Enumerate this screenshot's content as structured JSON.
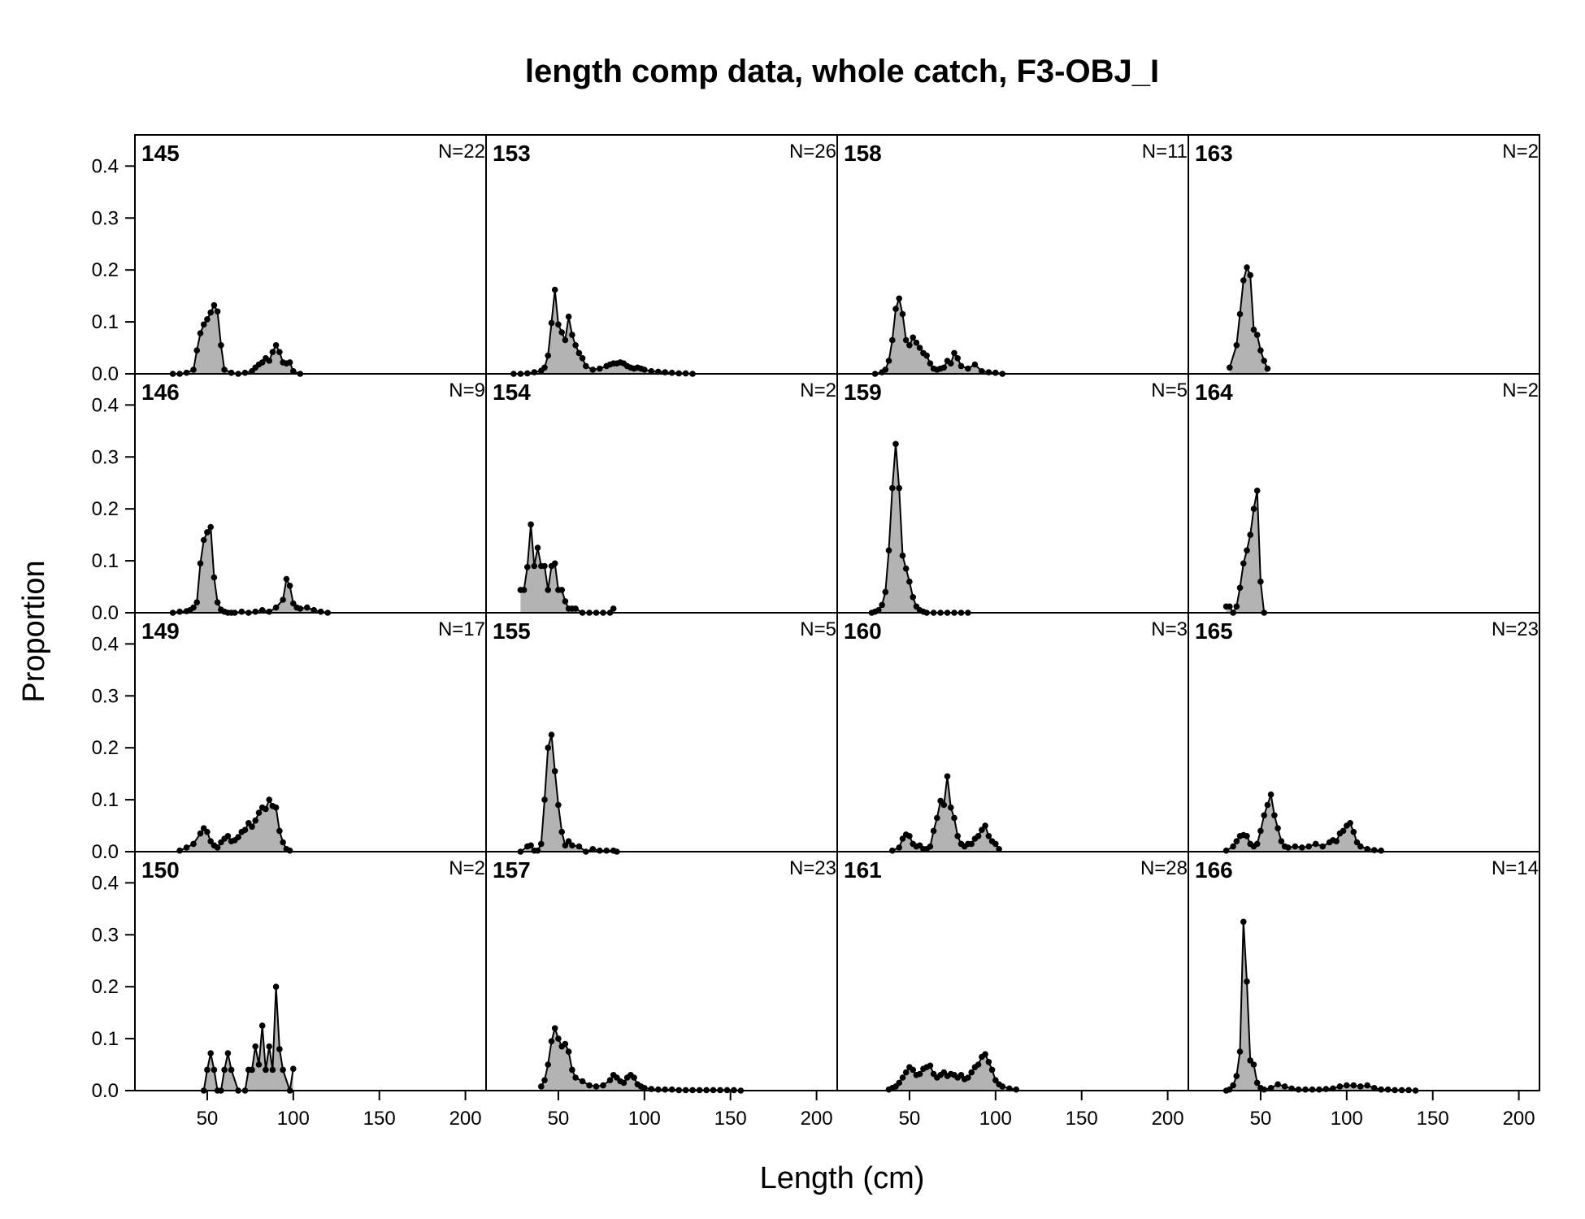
{
  "chart_data": {
    "type": "area",
    "title": "length comp data, whole catch, F3-OBJ_I",
    "xlabel": "Length (cm)",
    "ylabel": "Proportion",
    "xlim": [
      8,
      212
    ],
    "ylim": [
      0,
      0.46
    ],
    "xticks": [
      50,
      100,
      150,
      200
    ],
    "yticks": [
      0.0,
      0.1,
      0.2,
      0.3,
      0.4
    ],
    "ytick_labels": [
      "0.0",
      "0.1",
      "0.2",
      "0.3",
      "0.4"
    ],
    "grid": false,
    "layout": {
      "columns": 4,
      "rows": 4
    },
    "panels": [
      {
        "year": "145",
        "n_label": "N=22",
        "x": [
          30,
          34,
          38,
          42,
          44,
          46,
          48,
          50,
          52,
          54,
          56,
          58,
          60,
          64,
          68,
          72,
          76,
          78,
          80,
          82,
          84,
          86,
          88,
          90,
          92,
          94,
          96,
          98,
          100,
          104
        ],
        "y": [
          0,
          0,
          0.002,
          0.008,
          0.045,
          0.078,
          0.095,
          0.105,
          0.118,
          0.132,
          0.12,
          0.055,
          0.008,
          0.002,
          0,
          0.002,
          0.005,
          0.012,
          0.018,
          0.022,
          0.03,
          0.025,
          0.042,
          0.055,
          0.042,
          0.022,
          0.02,
          0.022,
          0.005,
          0
        ]
      },
      {
        "year": "146",
        "n_label": "N=9",
        "x": [
          30,
          34,
          38,
          40,
          42,
          44,
          46,
          48,
          50,
          52,
          54,
          56,
          58,
          60,
          62,
          64,
          66,
          70,
          74,
          78,
          82,
          86,
          90,
          94,
          96,
          98,
          100,
          102,
          104,
          108,
          112,
          116,
          120
        ],
        "y": [
          0,
          0.002,
          0.003,
          0.005,
          0.01,
          0.02,
          0.095,
          0.14,
          0.155,
          0.165,
          0.068,
          0.02,
          0.006,
          0.002,
          0,
          0,
          0,
          0.002,
          0,
          0.002,
          0.005,
          0.002,
          0.01,
          0.025,
          0.065,
          0.052,
          0.018,
          0.01,
          0.008,
          0.01,
          0.005,
          0.002,
          0
        ]
      },
      {
        "year": "149",
        "n_label": "N=17",
        "x": [
          34,
          38,
          42,
          46,
          48,
          50,
          52,
          54,
          56,
          58,
          60,
          62,
          64,
          66,
          68,
          70,
          72,
          74,
          76,
          78,
          80,
          82,
          84,
          86,
          88,
          90,
          92,
          94,
          96,
          98
        ],
        "y": [
          0.002,
          0.008,
          0.015,
          0.035,
          0.045,
          0.038,
          0.02,
          0.012,
          0.008,
          0.018,
          0.025,
          0.03,
          0.02,
          0.022,
          0.028,
          0.038,
          0.042,
          0.055,
          0.048,
          0.06,
          0.075,
          0.085,
          0.082,
          0.1,
          0.088,
          0.085,
          0.04,
          0.018,
          0.005,
          0.002
        ]
      },
      {
        "year": "150",
        "n_label": "N=2",
        "x": [
          48,
          50,
          52,
          54,
          56,
          58,
          60,
          62,
          64,
          68,
          72,
          74,
          76,
          78,
          80,
          82,
          84,
          86,
          88,
          90,
          92,
          94,
          98,
          100
        ],
        "y": [
          0,
          0.04,
          0.072,
          0.04,
          0,
          0,
          0.04,
          0.072,
          0.04,
          0,
          0,
          0.04,
          0.04,
          0.085,
          0.05,
          0.125,
          0.04,
          0.085,
          0.04,
          0.2,
          0.08,
          0.04,
          0,
          0.042
        ]
      },
      {
        "year": "153",
        "n_label": "N=26",
        "x": [
          24,
          28,
          32,
          36,
          40,
          42,
          44,
          46,
          48,
          50,
          52,
          54,
          56,
          58,
          60,
          62,
          64,
          66,
          70,
          74,
          78,
          80,
          82,
          84,
          86,
          88,
          90,
          92,
          94,
          96,
          98,
          100,
          104,
          108,
          112,
          116,
          120,
          124,
          128
        ],
        "y": [
          0,
          0,
          0.001,
          0.003,
          0.006,
          0.012,
          0.035,
          0.098,
          0.162,
          0.095,
          0.08,
          0.065,
          0.11,
          0.075,
          0.055,
          0.04,
          0.03,
          0.015,
          0.008,
          0.01,
          0.015,
          0.018,
          0.02,
          0.02,
          0.022,
          0.02,
          0.015,
          0.012,
          0.01,
          0.012,
          0.01,
          0.008,
          0.005,
          0.004,
          0.003,
          0.002,
          0.001,
          0.001,
          0
        ]
      },
      {
        "year": "154",
        "n_label": "N=2",
        "x": [
          28,
          30,
          32,
          34,
          36,
          38,
          40,
          42,
          44,
          46,
          48,
          50,
          52,
          54,
          56,
          58,
          60,
          64,
          68,
          72,
          76,
          80,
          82
        ],
        "y": [
          0.044,
          0.044,
          0.088,
          0.17,
          0.09,
          0.125,
          0.09,
          0.09,
          0.044,
          0.09,
          0.095,
          0.044,
          0.044,
          0.022,
          0.008,
          0.008,
          0.008,
          0,
          0,
          0,
          0,
          0,
          0.008
        ]
      },
      {
        "year": "155",
        "n_label": "N=5",
        "x": [
          28,
          32,
          34,
          36,
          38,
          40,
          42,
          44,
          46,
          48,
          50,
          52,
          54,
          56,
          58,
          62,
          66,
          70,
          74,
          78,
          82,
          84
        ],
        "y": [
          0,
          0.01,
          0.012,
          0.002,
          0.002,
          0.015,
          0.1,
          0.2,
          0.225,
          0.155,
          0.09,
          0.038,
          0.012,
          0.02,
          0.012,
          0.01,
          0,
          0.005,
          0.002,
          0.002,
          0.002,
          0
        ]
      },
      {
        "year": "157",
        "n_label": "N=23",
        "x": [
          40,
          42,
          44,
          46,
          48,
          50,
          52,
          54,
          56,
          58,
          60,
          64,
          68,
          72,
          76,
          80,
          82,
          84,
          86,
          88,
          90,
          92,
          94,
          96,
          98,
          100,
          104,
          108,
          112,
          116,
          120,
          124,
          128,
          132,
          136,
          140,
          144,
          148,
          152,
          156
        ],
        "y": [
          0.008,
          0.02,
          0.05,
          0.095,
          0.12,
          0.1,
          0.085,
          0.09,
          0.075,
          0.04,
          0.025,
          0.018,
          0.01,
          0.008,
          0.01,
          0.02,
          0.03,
          0.025,
          0.018,
          0.015,
          0.025,
          0.03,
          0.025,
          0.012,
          0.008,
          0.005,
          0.003,
          0.002,
          0.002,
          0.002,
          0.001,
          0.001,
          0.001,
          0.001,
          0.001,
          0.001,
          0.001,
          0.001,
          0.001,
          0
        ]
      },
      {
        "year": "158",
        "n_label": "N=11",
        "x": [
          30,
          34,
          36,
          38,
          40,
          42,
          44,
          46,
          48,
          50,
          52,
          54,
          56,
          58,
          60,
          62,
          64,
          66,
          68,
          70,
          72,
          74,
          76,
          78,
          80,
          84,
          88,
          92,
          96,
          100,
          104
        ],
        "y": [
          0,
          0.003,
          0.008,
          0.025,
          0.065,
          0.125,
          0.145,
          0.115,
          0.065,
          0.055,
          0.07,
          0.06,
          0.05,
          0.04,
          0.035,
          0.02,
          0.01,
          0.008,
          0.01,
          0.012,
          0.025,
          0.02,
          0.04,
          0.03,
          0.015,
          0.01,
          0.018,
          0.005,
          0.003,
          0.002,
          0
        ]
      },
      {
        "year": "159",
        "n_label": "N=5",
        "x": [
          28,
          30,
          32,
          34,
          36,
          38,
          40,
          42,
          44,
          46,
          48,
          50,
          52,
          54,
          56,
          58,
          60,
          64,
          68,
          72,
          76,
          80,
          84
        ],
        "y": [
          0,
          0.002,
          0.005,
          0.015,
          0.04,
          0.12,
          0.24,
          0.325,
          0.24,
          0.11,
          0.085,
          0.06,
          0.03,
          0.012,
          0.005,
          0.002,
          0,
          0,
          0,
          0,
          0,
          0,
          0
        ]
      },
      {
        "year": "160",
        "n_label": "N=3",
        "x": [
          40,
          44,
          46,
          48,
          50,
          52,
          54,
          56,
          58,
          60,
          62,
          64,
          66,
          68,
          70,
          72,
          74,
          76,
          78,
          80,
          82,
          84,
          86,
          88,
          90,
          92,
          94,
          96,
          98,
          100,
          102
        ],
        "y": [
          0.002,
          0.008,
          0.025,
          0.033,
          0.03,
          0.015,
          0.01,
          0.012,
          0.005,
          0.005,
          0.01,
          0.04,
          0.065,
          0.098,
          0.09,
          0.145,
          0.085,
          0.065,
          0.03,
          0.015,
          0.01,
          0.015,
          0.015,
          0.025,
          0.03,
          0.042,
          0.05,
          0.03,
          0.02,
          0.015,
          0.005
        ]
      },
      {
        "year": "161",
        "n_label": "N=28",
        "x": [
          38,
          40,
          42,
          44,
          46,
          48,
          50,
          52,
          54,
          56,
          58,
          60,
          62,
          64,
          66,
          68,
          70,
          72,
          74,
          76,
          78,
          80,
          82,
          84,
          86,
          88,
          90,
          92,
          94,
          96,
          98,
          100,
          102,
          104,
          108,
          112
        ],
        "y": [
          0.002,
          0.005,
          0.008,
          0.015,
          0.025,
          0.035,
          0.045,
          0.04,
          0.03,
          0.032,
          0.042,
          0.045,
          0.048,
          0.032,
          0.025,
          0.03,
          0.035,
          0.028,
          0.032,
          0.03,
          0.025,
          0.03,
          0.022,
          0.025,
          0.035,
          0.045,
          0.05,
          0.065,
          0.07,
          0.055,
          0.04,
          0.02,
          0.012,
          0.008,
          0.004,
          0.002
        ]
      },
      {
        "year": "163",
        "n_label": "N=2",
        "x": [
          32,
          36,
          38,
          40,
          42,
          44,
          46,
          48,
          50,
          52,
          54
        ],
        "y": [
          0.012,
          0.055,
          0.115,
          0.18,
          0.205,
          0.19,
          0.085,
          0.075,
          0.045,
          0.025,
          0.01
        ]
      },
      {
        "year": "164",
        "n_label": "N=2",
        "x": [
          30,
          32,
          34,
          36,
          38,
          40,
          42,
          44,
          46,
          48,
          50,
          52
        ],
        "y": [
          0.012,
          0.012,
          0,
          0.012,
          0.048,
          0.095,
          0.12,
          0.15,
          0.2,
          0.235,
          0.06,
          0
        ]
      },
      {
        "year": "165",
        "n_label": "N=23",
        "x": [
          30,
          34,
          36,
          38,
          40,
          42,
          44,
          46,
          48,
          50,
          52,
          54,
          56,
          58,
          60,
          62,
          64,
          66,
          70,
          74,
          78,
          82,
          86,
          90,
          92,
          94,
          96,
          98,
          100,
          102,
          104,
          106,
          108,
          112,
          116,
          120
        ],
        "y": [
          0.002,
          0.01,
          0.02,
          0.03,
          0.032,
          0.03,
          0.015,
          0.01,
          0.015,
          0.04,
          0.07,
          0.09,
          0.11,
          0.07,
          0.045,
          0.02,
          0.01,
          0.008,
          0.01,
          0.008,
          0.01,
          0.015,
          0.01,
          0.018,
          0.022,
          0.02,
          0.035,
          0.04,
          0.05,
          0.055,
          0.038,
          0.018,
          0.01,
          0.005,
          0.003,
          0.002
        ]
      },
      {
        "year": "166",
        "n_label": "N=14",
        "x": [
          30,
          32,
          34,
          36,
          38,
          40,
          42,
          44,
          46,
          48,
          50,
          52,
          56,
          60,
          64,
          68,
          72,
          76,
          80,
          84,
          88,
          92,
          96,
          100,
          104,
          108,
          112,
          116,
          120,
          124,
          128,
          132,
          136,
          140
        ],
        "y": [
          0,
          0.002,
          0.01,
          0.028,
          0.075,
          0.325,
          0.21,
          0.058,
          0.05,
          0.015,
          0.005,
          0.002,
          0.005,
          0.012,
          0.008,
          0.004,
          0.002,
          0.002,
          0.002,
          0.002,
          0.003,
          0.004,
          0.008,
          0.01,
          0.01,
          0.008,
          0.01,
          0.005,
          0.002,
          0.002,
          0.001,
          0.001,
          0.001,
          0
        ]
      }
    ]
  }
}
